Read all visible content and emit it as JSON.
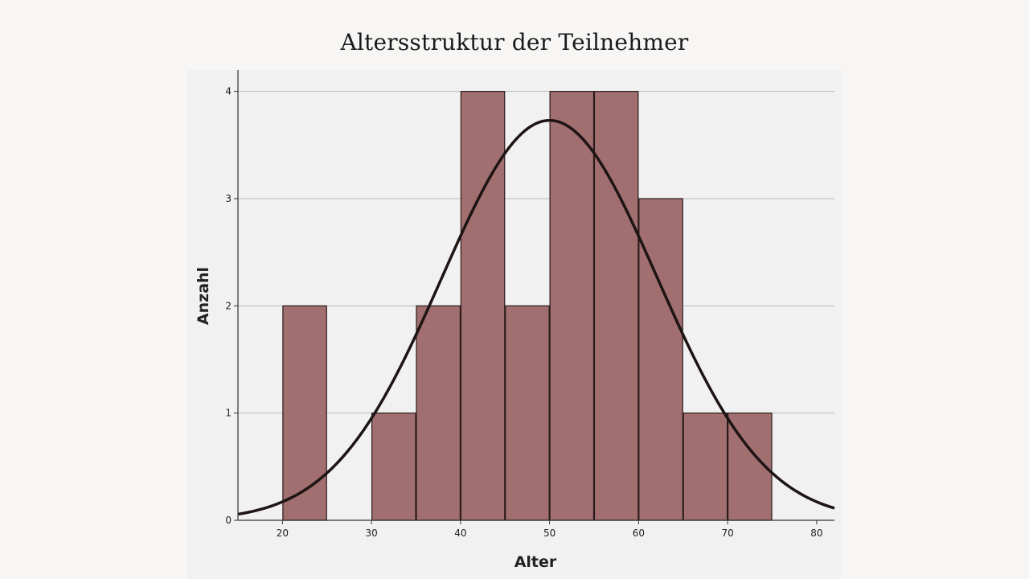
{
  "chart_data": {
    "type": "bar",
    "subtype": "histogram-with-normal-curve",
    "title": "Altersstruktur der Teilnehmer",
    "xlabel": "Alter",
    "ylabel": "Anzahl",
    "bin_width": 5,
    "bins": [
      {
        "start": 20,
        "end": 25,
        "count": 2
      },
      {
        "start": 30,
        "end": 35,
        "count": 1
      },
      {
        "start": 35,
        "end": 40,
        "count": 2
      },
      {
        "start": 40,
        "end": 45,
        "count": 4
      },
      {
        "start": 45,
        "end": 50,
        "count": 2
      },
      {
        "start": 50,
        "end": 55,
        "count": 4
      },
      {
        "start": 55,
        "end": 60,
        "count": 4
      },
      {
        "start": 60,
        "end": 65,
        "count": 3
      },
      {
        "start": 65,
        "end": 70,
        "count": 1
      },
      {
        "start": 70,
        "end": 75,
        "count": 1
      }
    ],
    "xlim": [
      15,
      82
    ],
    "ylim": [
      0,
      4.2
    ],
    "x_ticks": [
      20,
      30,
      40,
      50,
      60,
      70,
      80
    ],
    "y_ticks": [
      0,
      1,
      2,
      3,
      4
    ],
    "normal_curve": {
      "mean": 50,
      "peak": 3.73,
      "sd": 12.1
    },
    "bar_color": "#a26f70",
    "curve_color": "#1e1414",
    "grid": "horizontal"
  }
}
